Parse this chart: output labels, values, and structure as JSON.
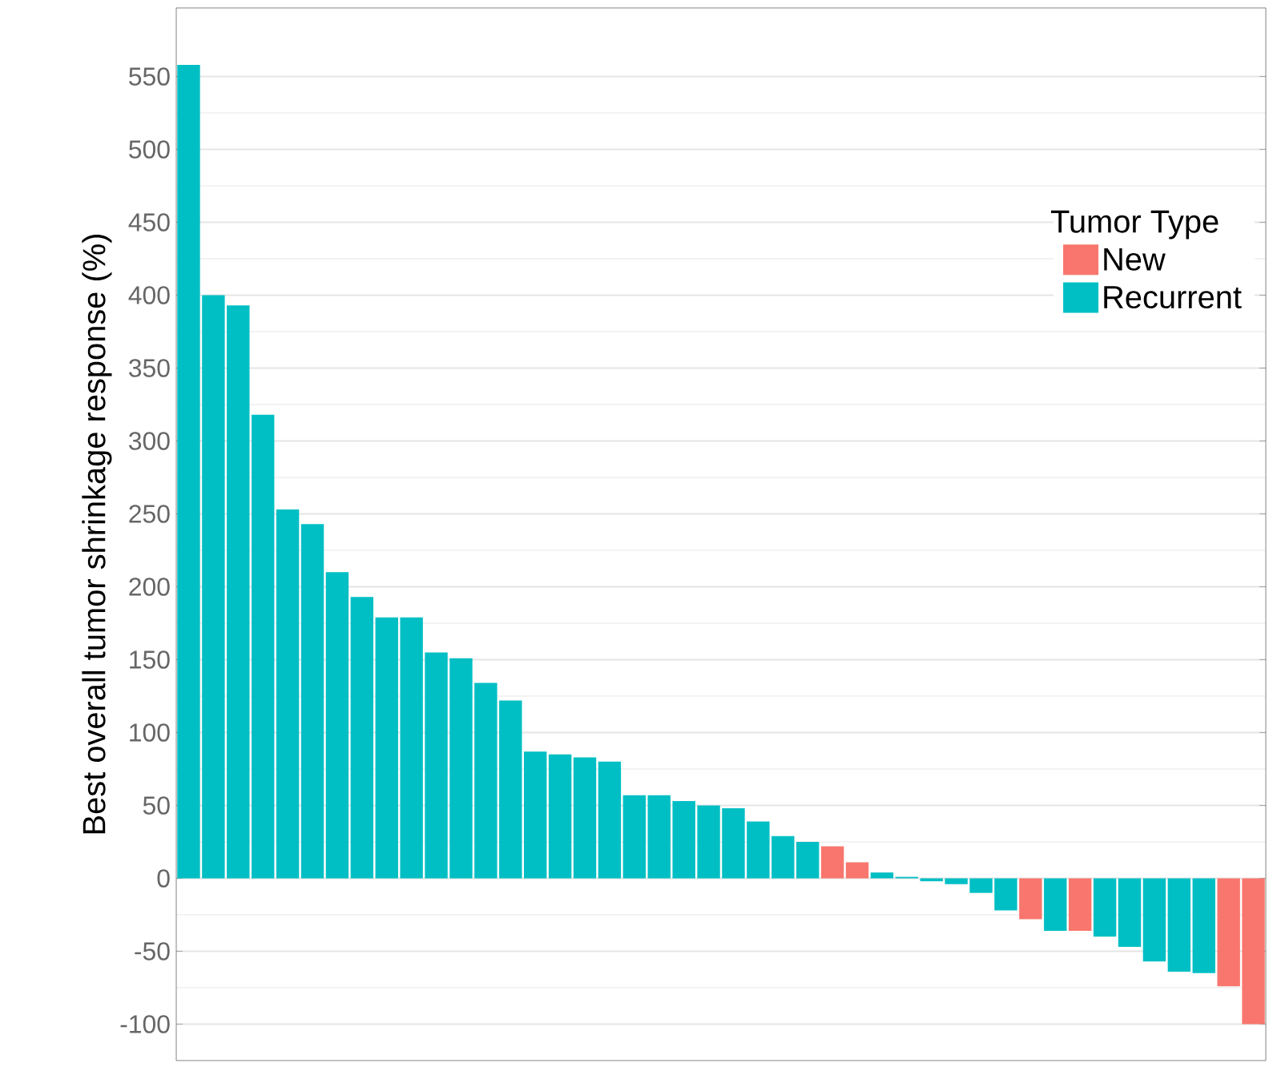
{
  "chart_data": {
    "type": "bar",
    "ylabel": "Best overall tumor shrinkage response (%)",
    "legend_title": "Tumor Type",
    "categories": [
      null,
      null,
      null,
      null,
      null,
      null,
      null,
      null,
      null,
      null,
      null,
      null,
      null,
      null,
      null,
      null,
      null,
      null,
      null,
      null,
      null,
      null,
      null,
      null,
      null,
      null,
      null,
      null,
      null,
      null,
      null,
      null,
      null,
      null,
      null,
      null,
      null,
      null,
      null,
      null,
      null,
      null,
      null,
      null
    ],
    "series": [
      {
        "name": "New",
        "color": "#f8766d",
        "values": [
          null,
          null,
          null,
          null,
          null,
          null,
          null,
          null,
          null,
          null,
          null,
          null,
          null,
          null,
          null,
          null,
          null,
          null,
          null,
          null,
          null,
          null,
          null,
          null,
          null,
          null,
          22,
          11,
          null,
          null,
          null,
          null,
          null,
          null,
          -28,
          null,
          -36,
          null,
          null,
          null,
          null,
          null,
          -74,
          -100
        ]
      },
      {
        "name": "Recurrent",
        "color": "#00bfc4",
        "values": [
          558,
          400,
          393,
          318,
          253,
          243,
          210,
          193,
          179,
          179,
          155,
          151,
          134,
          122,
          87,
          85,
          83,
          80,
          57,
          57,
          53,
          50,
          48,
          39,
          29,
          25,
          null,
          null,
          4,
          1,
          -2,
          -4,
          -10,
          -22,
          null,
          -36,
          null,
          -40,
          -47,
          -57,
          -64,
          -65,
          null,
          null
        ]
      }
    ],
    "ylim": [
      -125,
      597
    ],
    "yticks": [
      -100,
      -50,
      0,
      50,
      100,
      150,
      200,
      250,
      300,
      350,
      400,
      450,
      500,
      550
    ],
    "tick_labels": "y",
    "grid": true,
    "legend": "top right"
  }
}
